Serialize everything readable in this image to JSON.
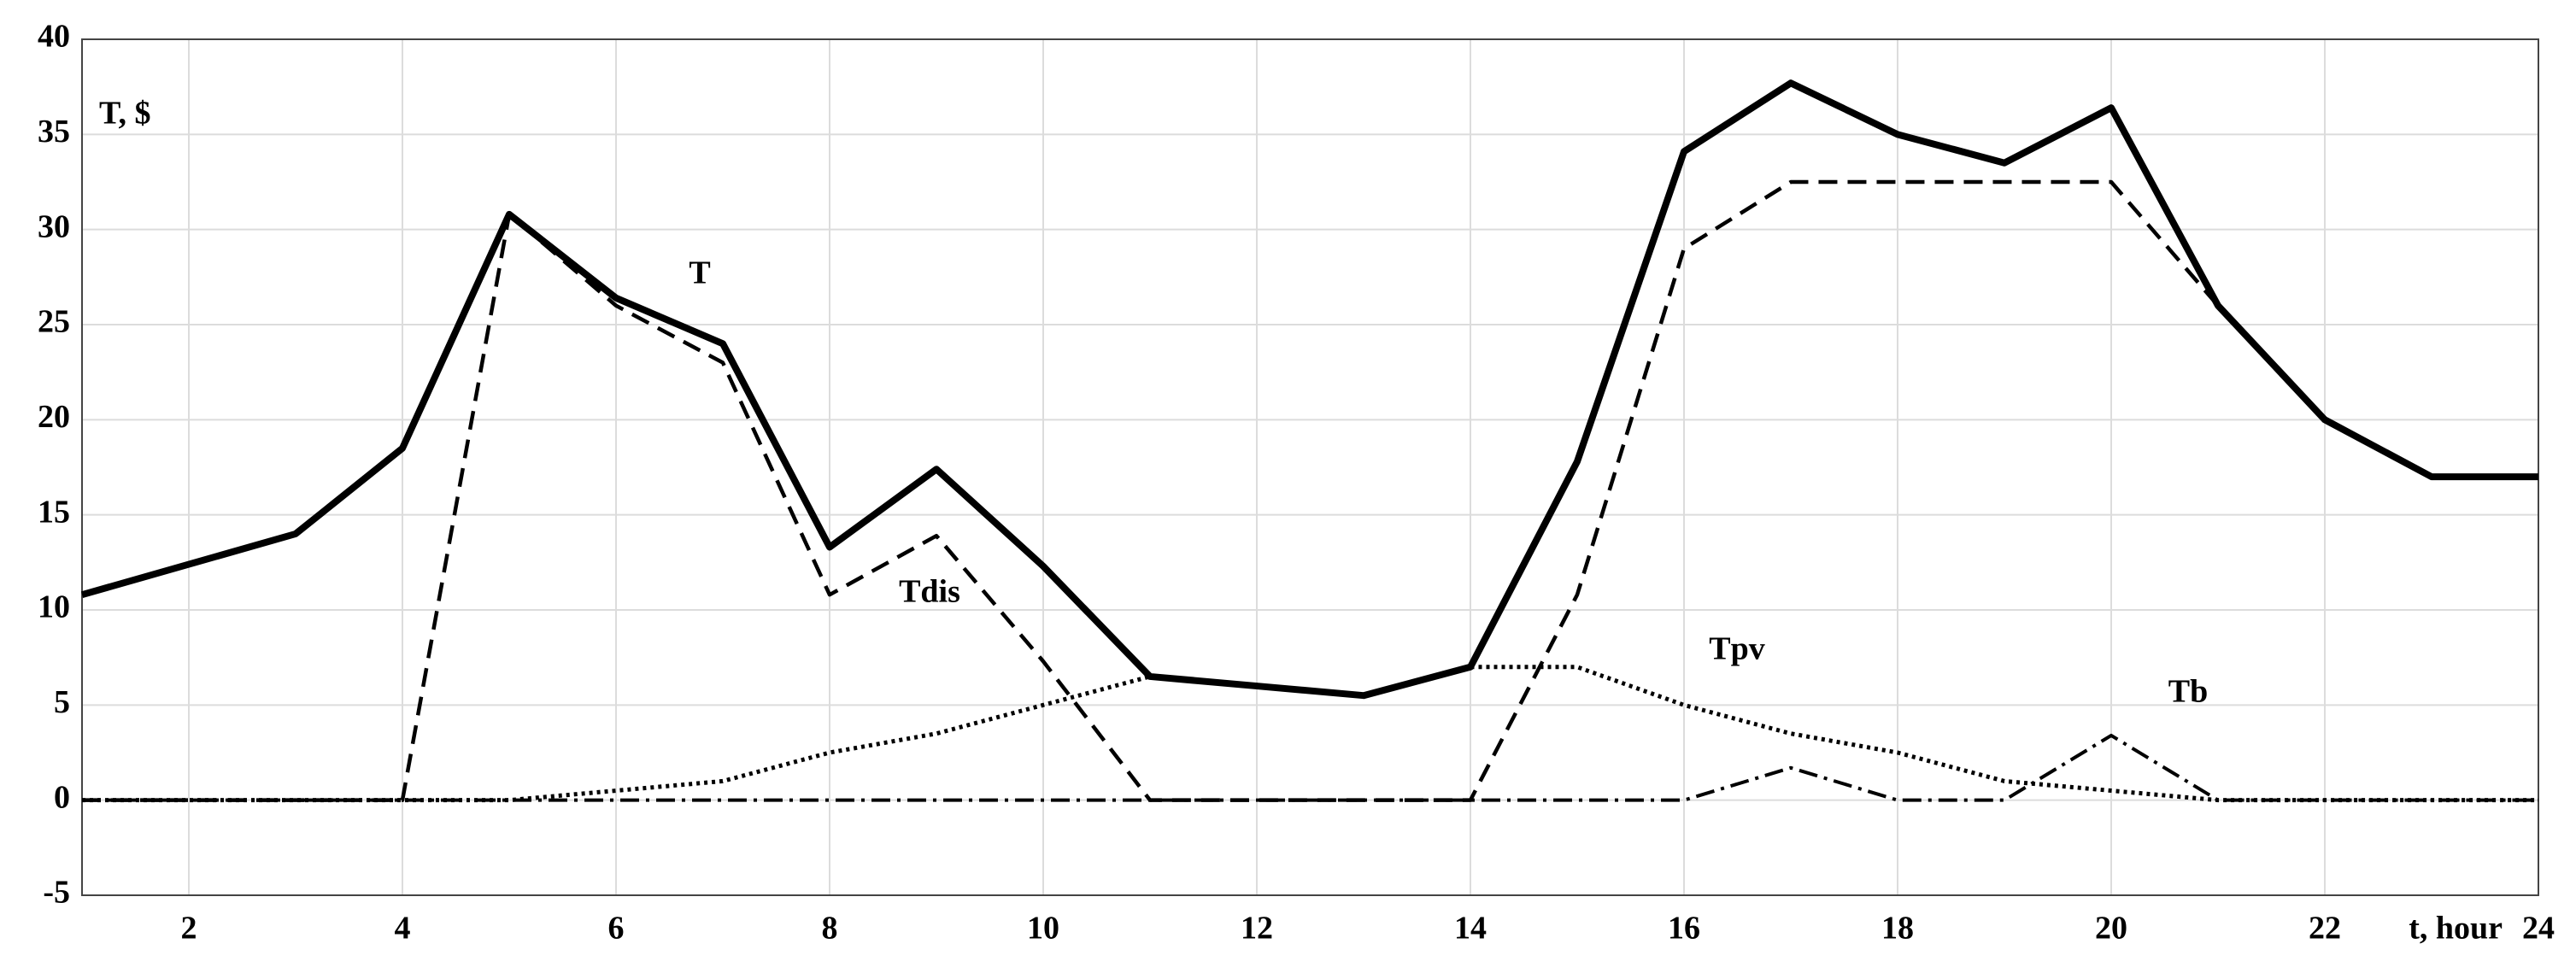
{
  "chart_data": {
    "type": "line",
    "y_label": "T, $",
    "x_label": "t, hour",
    "x": [
      1,
      2,
      3,
      4,
      5,
      6,
      7,
      8,
      9,
      10,
      11,
      12,
      13,
      14,
      15,
      16,
      17,
      18,
      19,
      20,
      21,
      22,
      23,
      24
    ],
    "series": [
      {
        "name": "T",
        "color": "#000000",
        "style": "solid",
        "values": [
          10.8,
          12.4,
          14,
          18.5,
          30.8,
          26.4,
          24,
          13.3,
          17.4,
          12.3,
          6.5,
          6,
          5.5,
          7,
          17.8,
          34.1,
          37.7,
          35,
          33.5,
          36.4,
          26,
          20,
          17,
          17
        ]
      },
      {
        "name": "Tdis",
        "color": "#000000",
        "style": "dashed",
        "values": [
          0,
          0,
          0,
          0,
          30.8,
          26,
          23,
          10.8,
          13.9,
          7.3,
          0,
          0,
          0,
          0,
          10.8,
          29,
          32.5,
          32.5,
          32.5,
          32.5,
          26,
          20,
          17,
          17
        ]
      },
      {
        "name": "Tpv",
        "color": "#000000",
        "style": "dotted",
        "values": [
          0,
          0,
          0,
          0,
          0,
          0.5,
          1,
          2.5,
          3.5,
          5,
          6.5,
          6,
          5.5,
          7,
          7,
          5,
          3.5,
          2.5,
          1,
          0.5,
          0,
          0,
          0,
          0
        ]
      },
      {
        "name": "Tb",
        "color": "#000000",
        "style": "dashdot",
        "values": [
          0,
          0,
          0,
          0,
          0,
          0,
          0,
          0,
          0,
          0,
          0,
          0,
          0,
          0,
          0,
          0,
          1.7,
          0,
          0,
          3.4,
          0,
          0,
          0,
          0
        ]
      }
    ],
    "xlim": [
      1,
      24
    ],
    "xticks": [
      2,
      4,
      6,
      8,
      10,
      12,
      14,
      16,
      18,
      20,
      22,
      24
    ],
    "ylim": [
      -5,
      40
    ],
    "yticks": [
      -5,
      0,
      5,
      10,
      15,
      20,
      25,
      30,
      35,
      40
    ],
    "grid": true
  }
}
